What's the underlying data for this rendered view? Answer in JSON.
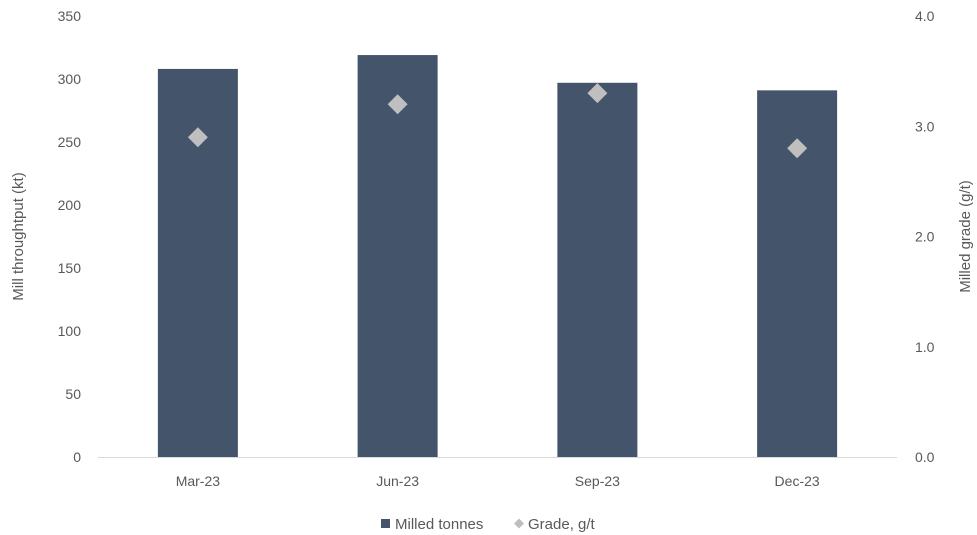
{
  "chart_data": {
    "type": "bar",
    "categories": [
      "Mar-23",
      "Jun-23",
      "Sep-23",
      "Dec-23"
    ],
    "series": [
      {
        "name": "Milled tonnes",
        "kind": "bar",
        "axis": "left",
        "values": [
          308,
          319,
          297,
          291
        ],
        "color": "#44546a"
      },
      {
        "name": "Grade, g/t",
        "kind": "scatter",
        "marker": "diamond",
        "axis": "right",
        "values": [
          2.9,
          3.2,
          3.3,
          2.8
        ],
        "color": "#bfbfbf"
      }
    ],
    "ylabel": "Mill throughtput (kt)",
    "y2label": "Milled grade (g/t)",
    "ylim": [
      0,
      350
    ],
    "y2lim": [
      0,
      4.0
    ],
    "yticks": [
      "0",
      "50",
      "100",
      "150",
      "200",
      "250",
      "300",
      "350"
    ],
    "y2ticks": [
      "0.0",
      "1.0",
      "2.0",
      "3.0",
      "4.0"
    ],
    "legend_position": "bottom",
    "grid": false
  }
}
